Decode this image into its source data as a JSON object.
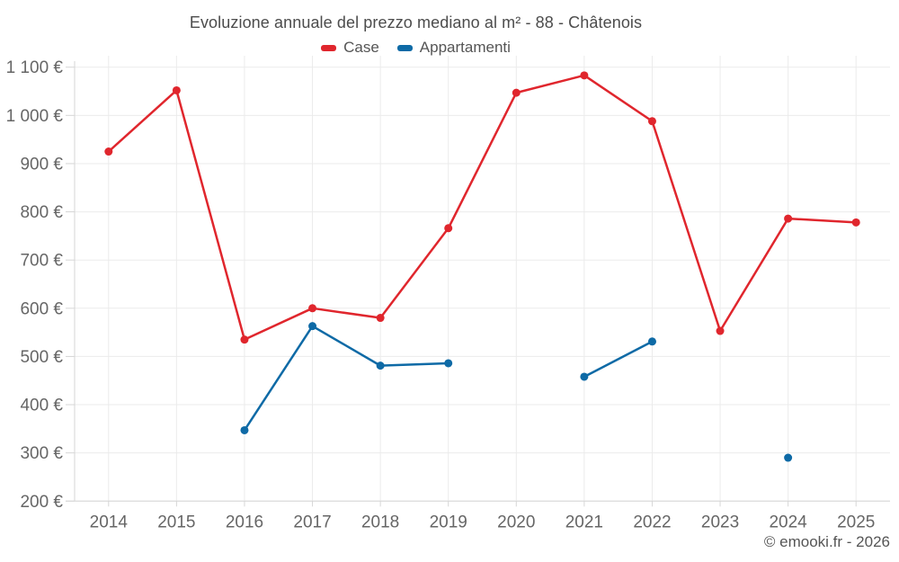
{
  "chart_data": {
    "type": "line",
    "title": "Evoluzione annuale del prezzo mediano al m² - 88 - Châtenois",
    "categories": [
      "2014",
      "2015",
      "2016",
      "2017",
      "2018",
      "2019",
      "2020",
      "2021",
      "2022",
      "2023",
      "2024",
      "2025"
    ],
    "series": [
      {
        "name": "Case",
        "color": "#e0262d",
        "values": [
          925,
          1052,
          535,
          600,
          580,
          766,
          1047,
          1083,
          988,
          553,
          786,
          778
        ]
      },
      {
        "name": "Appartamenti",
        "color": "#0e6aa6",
        "values": [
          null,
          null,
          347,
          563,
          481,
          486,
          null,
          458,
          531,
          null,
          290,
          null
        ]
      }
    ],
    "ylim": [
      200,
      1100
    ],
    "y_ticks": [
      200,
      300,
      400,
      500,
      600,
      700,
      800,
      900,
      1000,
      1100
    ],
    "y_tick_labels": [
      "200 €",
      "300 €",
      "400 €",
      "500 €",
      "600 €",
      "700 €",
      "800 €",
      "900 €",
      "1 000 €",
      "1 100 €"
    ],
    "currency_suffix": "€",
    "grid": true,
    "legend_position": "top",
    "axis_color": "#d6d6d6",
    "grid_color": "#ebebeb",
    "label_color": "#666666"
  },
  "footer": {
    "credit": "© emooki.fr - 2026"
  }
}
